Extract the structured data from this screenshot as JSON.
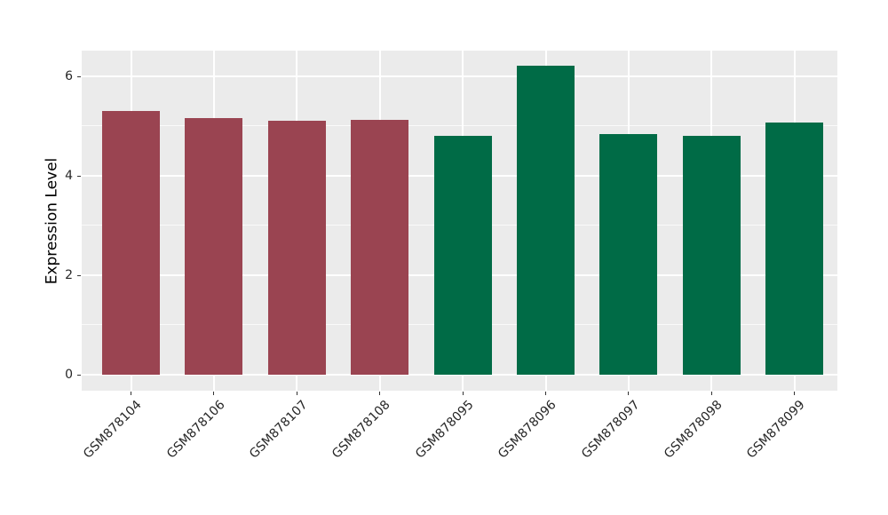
{
  "figure": {
    "background_color": "#ffffff"
  },
  "chart_data": {
    "type": "bar",
    "title": "",
    "xlabel": "",
    "ylabel": "Expression Level",
    "categories": [
      "GSM878104",
      "GSM878106",
      "GSM878107",
      "GSM878108",
      "GSM878095",
      "GSM878096",
      "GSM878097",
      "GSM878098",
      "GSM878099"
    ],
    "series": [
      {
        "name": "Expression Level",
        "values": [
          5.3,
          5.16,
          5.1,
          5.12,
          4.8,
          6.21,
          4.84,
          4.81,
          5.07
        ]
      }
    ],
    "bar_colors": [
      "#9a4451",
      "#9a4451",
      "#9a4451",
      "#9a4451",
      "#006b46",
      "#006b46",
      "#006b46",
      "#006b46",
      "#006b46"
    ],
    "group_colors": {
      "first_group": "#9a4451",
      "second_group": "#006b46"
    },
    "ylim": [
      -0.31,
      6.52
    ],
    "yticks": [
      0,
      2,
      4,
      6
    ],
    "ytick_labels": [
      "0",
      "2",
      "4",
      "6"
    ],
    "yticks_minor": [
      1,
      3,
      5
    ],
    "x_tick_label_rotation_deg": 45,
    "legend": "none",
    "grid": "on",
    "panel_background": "#ebebeb",
    "gridline_major_color": "#ffffff",
    "gridline_minor_color": "#ffffff",
    "tick_color": "#333333",
    "text_color": "#262626"
  }
}
